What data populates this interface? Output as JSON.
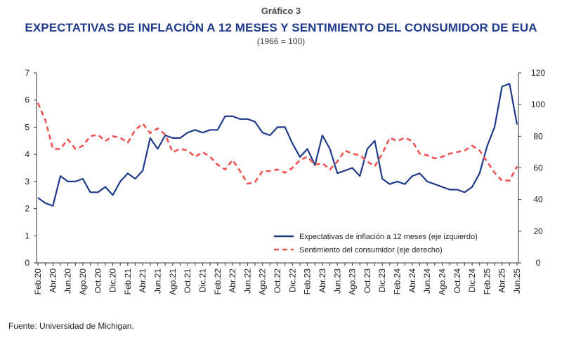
{
  "header": {
    "label": "Gráfico 3",
    "title": "EXPECTATIVAS DE INFLACIÓN A 12 MESES Y SENTIMIENTO DEL CONSUMIDOR DE EUA",
    "subtitle": "(1966 = 100)"
  },
  "source": "Fuente: Universidad de Michigan.",
  "colors": {
    "inflation": "#1f3a8a",
    "sentiment": "#ef5350"
  },
  "chart_data": {
    "type": "line",
    "x": [
      "Feb.20",
      "Mar.20",
      "Abr.20",
      "May.20",
      "Jun.20",
      "Jul.20",
      "Ago.20",
      "Sep.20",
      "Oct.20",
      "Nov.20",
      "Dic.20",
      "Ene.21",
      "Feb.21",
      "Mar.21",
      "Abr.21",
      "May.21",
      "Jun.21",
      "Jul.21",
      "Ago.21",
      "Sep.21",
      "Oct.21",
      "Nov.21",
      "Dic.21",
      "Ene.22",
      "Feb.22",
      "Mar.22",
      "Abr.22",
      "May.22",
      "Jun.22",
      "Jul.22",
      "Ago.22",
      "Sep.22",
      "Oct.22",
      "Nov.22",
      "Dic.22",
      "Ene.23",
      "Feb.23",
      "Mar.23",
      "Abr.23",
      "May.23",
      "Jun.23",
      "Jul.23",
      "Ago.23",
      "Sep.23",
      "Oct.23",
      "Nov.23",
      "Dic.23",
      "Ene.24",
      "Feb.24",
      "Mar.24",
      "Abr.24",
      "May.24",
      "Jun.24",
      "Jul.24",
      "Ago.24",
      "Sep.24",
      "Oct.24",
      "Nov.24",
      "Dic.24",
      "Ene.25",
      "Feb.25",
      "Mar.25",
      "Abr.25",
      "May.25",
      "Jun.25"
    ],
    "x_tick_labels": [
      "Feb.20",
      "Abr.20",
      "Jun.20",
      "Ago.20",
      "Oct.20",
      "Dic.20",
      "Feb.21",
      "Abr.21",
      "Jun.21",
      "Ago.21",
      "Oct.21",
      "Dic.21",
      "Feb.22",
      "Abr.22",
      "Jun.22",
      "Ago.22",
      "Oct.22",
      "Dic.22",
      "Feb.23",
      "Abr.23",
      "Jun.23",
      "Ago.23",
      "Oct.23",
      "Dic.23",
      "Feb.24",
      "Abr.24",
      "Jun.24",
      "Ago.24",
      "Oct.24",
      "Dic.24",
      "Feb.25",
      "Abr.25",
      "Jun.25"
    ],
    "series": [
      {
        "name": "Expectativas de inflación a 12 meses (eje izquierdo)",
        "axis": "left",
        "style": "solid",
        "values": [
          2.4,
          2.2,
          2.1,
          3.2,
          3.0,
          3.0,
          3.1,
          2.6,
          2.6,
          2.8,
          2.5,
          3.0,
          3.3,
          3.1,
          3.4,
          4.6,
          4.2,
          4.7,
          4.6,
          4.6,
          4.8,
          4.9,
          4.8,
          4.9,
          4.9,
          5.4,
          5.4,
          5.3,
          5.3,
          5.2,
          4.8,
          4.7,
          5.0,
          5.0,
          4.4,
          3.9,
          4.2,
          3.6,
          4.7,
          4.2,
          3.3,
          3.4,
          3.5,
          3.2,
          4.2,
          4.5,
          3.1,
          2.9,
          3.0,
          2.9,
          3.2,
          3.3,
          3.0,
          2.9,
          2.8,
          2.7,
          2.7,
          2.6,
          2.8,
          3.3,
          4.3,
          5.0,
          6.5,
          6.6,
          5.1
        ]
      },
      {
        "name": "Sentimiento del consumidor (eje derecho)",
        "axis": "right",
        "style": "dashed",
        "values": [
          101,
          90,
          72,
          72,
          78,
          72,
          74,
          80,
          81,
          77,
          80,
          79,
          76,
          84,
          88,
          82,
          85,
          81,
          70,
          72,
          71,
          67,
          70,
          67,
          62,
          59,
          65,
          58,
          50,
          51,
          58,
          58,
          59,
          57,
          60,
          65,
          67,
          62,
          63,
          59,
          64,
          71,
          69,
          68,
          64,
          61,
          69,
          79,
          77,
          79,
          77,
          69,
          68,
          66,
          67,
          69,
          70,
          71,
          74,
          71,
          64,
          57,
          52,
          52,
          61
        ]
      }
    ],
    "yleft": {
      "ylim": [
        0,
        7
      ],
      "ticks": [
        0,
        1,
        2,
        3,
        4,
        5,
        6,
        7
      ]
    },
    "yright": {
      "ylim": [
        0,
        120
      ],
      "ticks": [
        0,
        20,
        40,
        60,
        80,
        100,
        120
      ]
    },
    "legend_position": "bottom-right",
    "grid": false
  }
}
